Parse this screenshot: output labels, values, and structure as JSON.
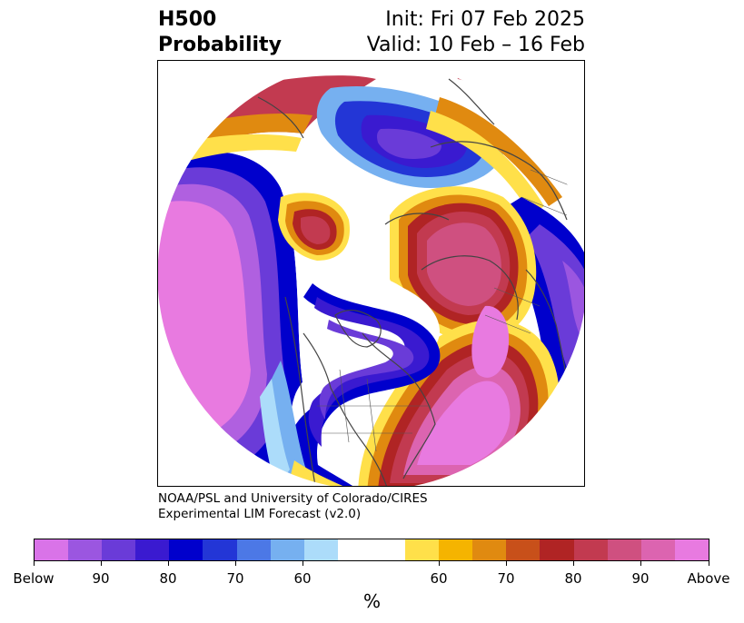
{
  "title": {
    "left_line1": "H500",
    "left_line2": "Probability",
    "right_line1": "Init: Fri 07 Feb 2025",
    "right_line2": "Valid: 10 Feb – 16 Feb"
  },
  "credit": {
    "line1": "NOAA/PSL and University of Colorado/CIRES",
    "line2": "Experimental LIM Forecast (v2.0)"
  },
  "colorbar": {
    "unit_label": "%",
    "colors": [
      "#d973e8",
      "#9b56e0",
      "#6a3bd8",
      "#3a1ad0",
      "#0000cc",
      "#2336d6",
      "#4c78e6",
      "#76b0f0",
      "#acdcfa",
      "#ffffff",
      "#ffe04a",
      "#f5b400",
      "#e08a10",
      "#c8501a",
      "#b02424",
      "#c23a50",
      "#cf5080",
      "#dc64b0",
      "#e87ae0"
    ],
    "tick_labels": [
      "Below",
      "90",
      "80",
      "70",
      "60",
      "60",
      "70",
      "80",
      "90",
      "Above"
    ]
  },
  "map": {
    "projection": "north-polar-stereographic",
    "field": "H500 probability",
    "coastline_color": "#444444"
  }
}
